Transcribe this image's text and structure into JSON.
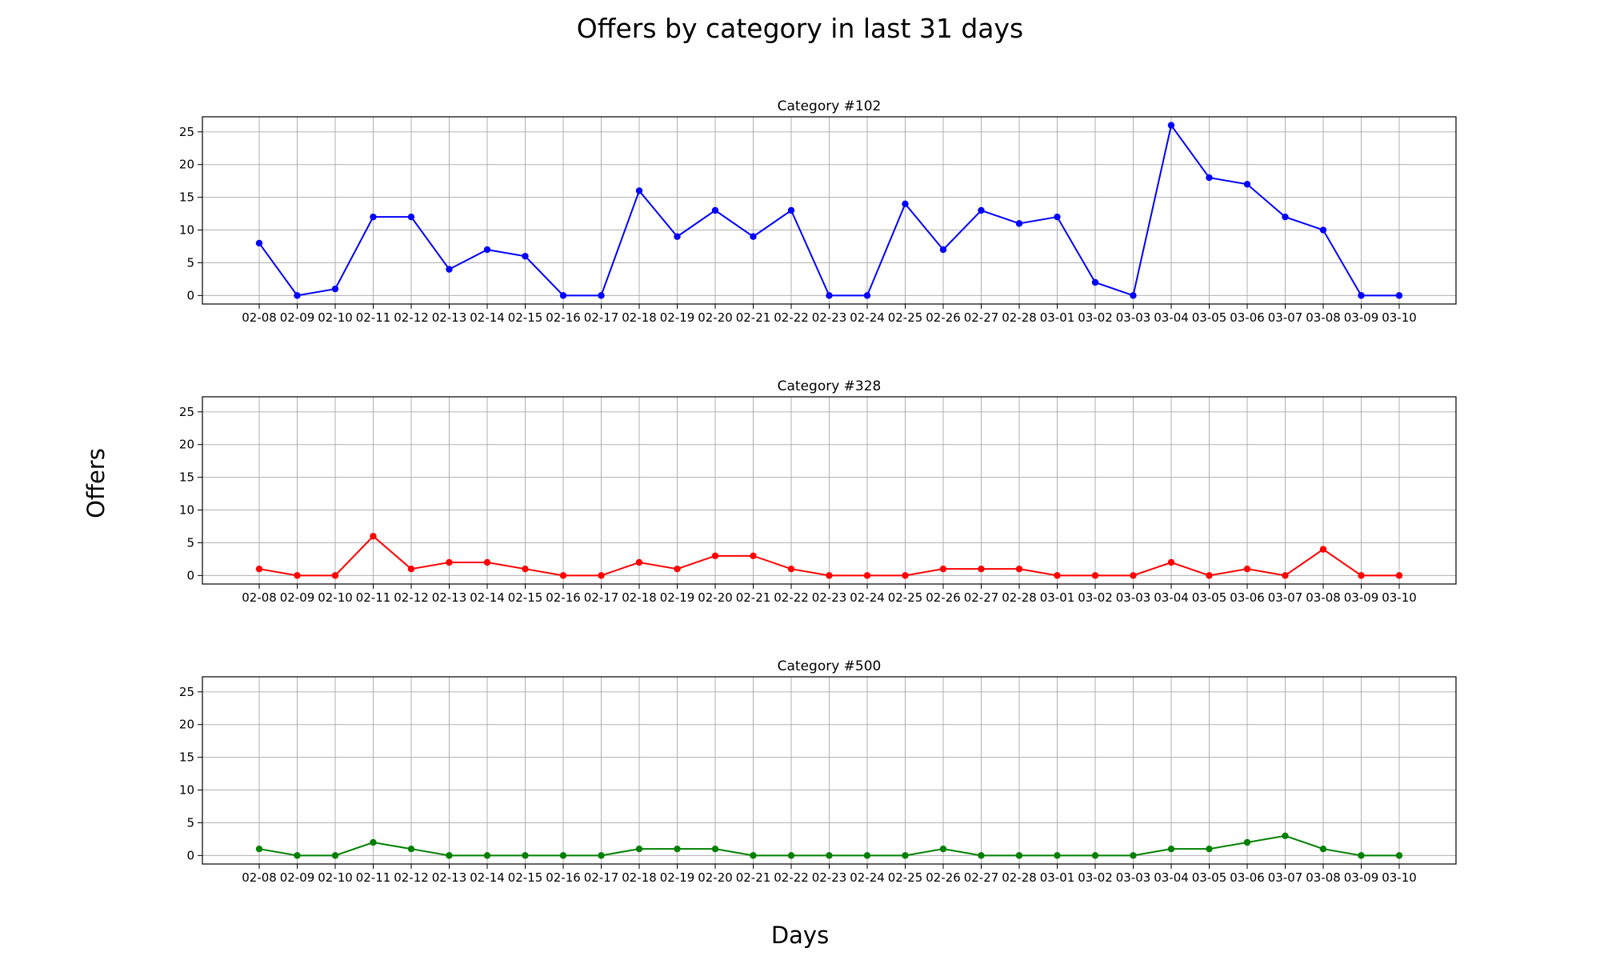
{
  "title": "Offers by category in last 31 days",
  "xlabel": "Days",
  "ylabel": "Offers",
  "chart_data": {
    "type": "line",
    "title": "Offers by category in last 31 days",
    "xlabel": "Days",
    "ylabel": "Offers",
    "ylim": [
      -1.3,
      27.3
    ],
    "yticks": [
      0,
      5,
      10,
      15,
      20,
      25
    ],
    "grid": true,
    "categories": [
      "02-08",
      "02-09",
      "02-10",
      "02-11",
      "02-12",
      "02-13",
      "02-14",
      "02-15",
      "02-16",
      "02-17",
      "02-18",
      "02-19",
      "02-20",
      "02-21",
      "02-22",
      "02-23",
      "02-24",
      "02-25",
      "02-26",
      "02-27",
      "02-28",
      "03-01",
      "03-02",
      "03-03",
      "03-04",
      "03-05",
      "03-06",
      "03-07",
      "03-08",
      "03-09",
      "03-10"
    ],
    "panels": [
      {
        "title": "Category #102",
        "color": "#0000ff",
        "values": [
          8,
          0,
          1,
          12,
          12,
          4,
          7,
          6,
          0,
          0,
          16,
          9,
          13,
          9,
          13,
          0,
          0,
          14,
          7,
          13,
          11,
          12,
          2,
          0,
          26,
          18,
          17,
          12,
          10,
          0,
          0
        ]
      },
      {
        "title": "Category #328",
        "color": "#ff0000",
        "values": [
          1,
          0,
          0,
          6,
          1,
          2,
          2,
          1,
          0,
          0,
          2,
          1,
          3,
          3,
          1,
          0,
          0,
          0,
          1,
          1,
          1,
          0,
          0,
          0,
          2,
          0,
          1,
          0,
          4,
          0,
          0
        ]
      },
      {
        "title": "Category #500",
        "color": "#008000",
        "values": [
          1,
          0,
          0,
          2,
          1,
          0,
          0,
          0,
          0,
          0,
          1,
          1,
          1,
          0,
          0,
          0,
          0,
          0,
          1,
          0,
          0,
          0,
          0,
          0,
          1,
          1,
          2,
          3,
          1,
          0,
          0
        ]
      }
    ]
  }
}
